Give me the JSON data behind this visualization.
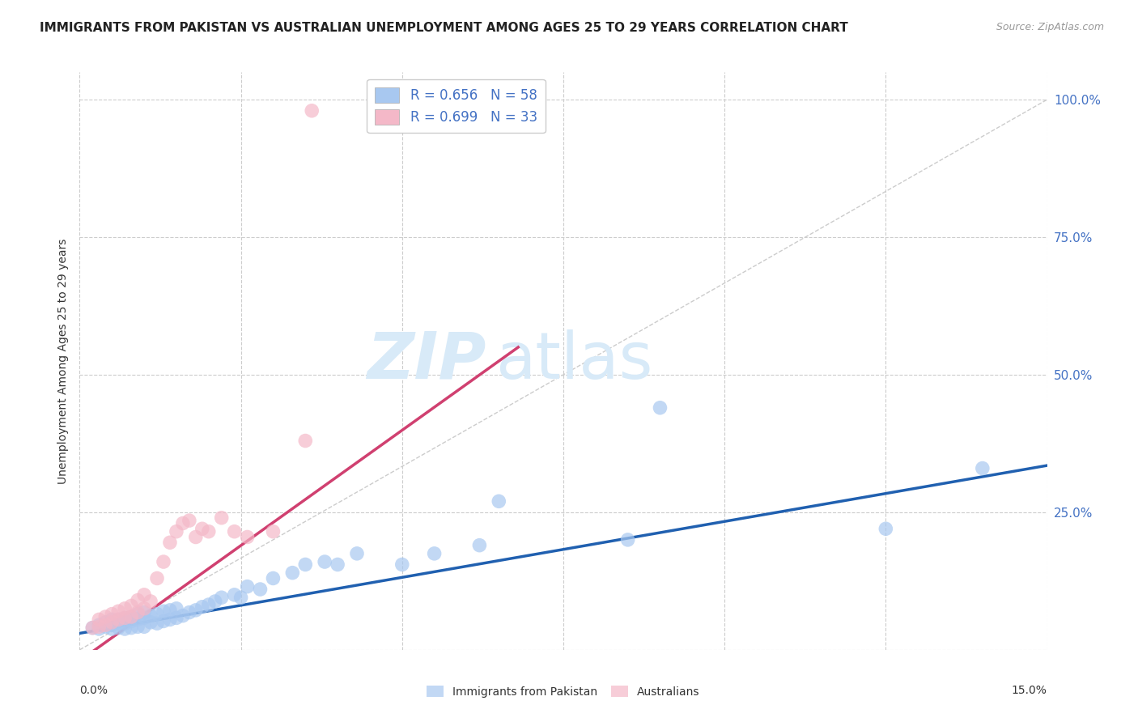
{
  "title": "IMMIGRANTS FROM PAKISTAN VS AUSTRALIAN UNEMPLOYMENT AMONG AGES 25 TO 29 YEARS CORRELATION CHART",
  "source": "Source: ZipAtlas.com",
  "ylabel": "Unemployment Among Ages 25 to 29 years",
  "xmin": 0.0,
  "xmax": 0.15,
  "ymin": 0.0,
  "ymax": 1.05,
  "yticks": [
    0.0,
    0.25,
    0.5,
    0.75,
    1.0
  ],
  "ytick_labels": [
    "",
    "25.0%",
    "50.0%",
    "75.0%",
    "100.0%"
  ],
  "xticks": [
    0.0,
    0.025,
    0.05,
    0.075,
    0.1,
    0.125,
    0.15
  ],
  "blue_color": "#a8c8f0",
  "blue_edge_color": "#7aadd4",
  "pink_color": "#f4b8c8",
  "pink_edge_color": "#d88aa0",
  "blue_line_color": "#2060b0",
  "pink_line_color": "#d04070",
  "diagonal_color": "#cccccc",
  "legend1_blue_label": "R = 0.656   N = 58",
  "legend1_pink_label": "R = 0.699   N = 33",
  "legend1_text_color": "#333333",
  "legend1_rv_color": "#4472c4",
  "legend2_blue_label": "Immigrants from Pakistan",
  "legend2_pink_label": "Australians",
  "watermark_zip": "ZIP",
  "watermark_atlas": "atlas",
  "watermark_color": "#d8eaf8",
  "blue_scatter_x": [
    0.002,
    0.003,
    0.003,
    0.004,
    0.004,
    0.005,
    0.005,
    0.005,
    0.006,
    0.006,
    0.006,
    0.007,
    0.007,
    0.007,
    0.008,
    0.008,
    0.008,
    0.009,
    0.009,
    0.009,
    0.01,
    0.01,
    0.01,
    0.011,
    0.011,
    0.012,
    0.012,
    0.013,
    0.013,
    0.014,
    0.014,
    0.015,
    0.015,
    0.016,
    0.017,
    0.018,
    0.019,
    0.02,
    0.021,
    0.022,
    0.024,
    0.025,
    0.026,
    0.028,
    0.03,
    0.033,
    0.035,
    0.038,
    0.04,
    0.043,
    0.05,
    0.055,
    0.062,
    0.065,
    0.085,
    0.09,
    0.125,
    0.14
  ],
  "blue_scatter_y": [
    0.04,
    0.038,
    0.045,
    0.042,
    0.05,
    0.038,
    0.045,
    0.055,
    0.04,
    0.048,
    0.055,
    0.038,
    0.048,
    0.058,
    0.04,
    0.052,
    0.06,
    0.042,
    0.055,
    0.065,
    0.042,
    0.058,
    0.068,
    0.05,
    0.062,
    0.048,
    0.065,
    0.052,
    0.07,
    0.055,
    0.072,
    0.058,
    0.075,
    0.062,
    0.068,
    0.072,
    0.078,
    0.082,
    0.088,
    0.095,
    0.1,
    0.095,
    0.115,
    0.11,
    0.13,
    0.14,
    0.155,
    0.16,
    0.155,
    0.175,
    0.155,
    0.175,
    0.19,
    0.27,
    0.2,
    0.44,
    0.22,
    0.33
  ],
  "pink_scatter_x": [
    0.002,
    0.003,
    0.003,
    0.004,
    0.004,
    0.005,
    0.005,
    0.006,
    0.006,
    0.007,
    0.007,
    0.008,
    0.008,
    0.009,
    0.009,
    0.01,
    0.01,
    0.011,
    0.012,
    0.013,
    0.014,
    0.015,
    0.016,
    0.017,
    0.018,
    0.019,
    0.02,
    0.022,
    0.024,
    0.026,
    0.03,
    0.035,
    0.036
  ],
  "pink_scatter_y": [
    0.04,
    0.042,
    0.055,
    0.045,
    0.06,
    0.05,
    0.065,
    0.055,
    0.07,
    0.058,
    0.075,
    0.06,
    0.08,
    0.068,
    0.09,
    0.075,
    0.1,
    0.088,
    0.13,
    0.16,
    0.195,
    0.215,
    0.23,
    0.235,
    0.205,
    0.22,
    0.215,
    0.24,
    0.215,
    0.205,
    0.215,
    0.38,
    0.98
  ],
  "blue_line_x": [
    0.0,
    0.15
  ],
  "blue_line_y": [
    0.03,
    0.335
  ],
  "pink_line_x": [
    0.0,
    0.068
  ],
  "pink_line_y": [
    -0.02,
    0.55
  ]
}
